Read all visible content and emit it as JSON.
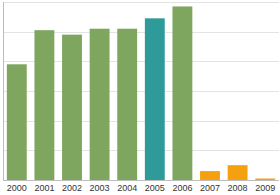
{
  "chart_data": {
    "type": "bar",
    "categories": [
      "2000",
      "2001",
      "2002",
      "2003",
      "2004",
      "2005",
      "2006",
      "2007",
      "2008",
      "2009"
    ],
    "values": [
      3.9,
      5.05,
      4.9,
      5.1,
      5.1,
      5.45,
      5.85,
      0.3,
      0.5,
      0.05
    ],
    "colors": [
      "#7ea65e",
      "#7ea65e",
      "#7ea65e",
      "#7ea65e",
      "#7ea65e",
      "#2e9a9a",
      "#7ea65e",
      "#f5a10f",
      "#f5a10f",
      "#f5a10f"
    ],
    "ylim": [
      0,
      6
    ],
    "yticks": [
      0,
      1,
      2,
      3,
      4,
      5,
      6
    ],
    "grid": true,
    "tick_labels": "x"
  }
}
